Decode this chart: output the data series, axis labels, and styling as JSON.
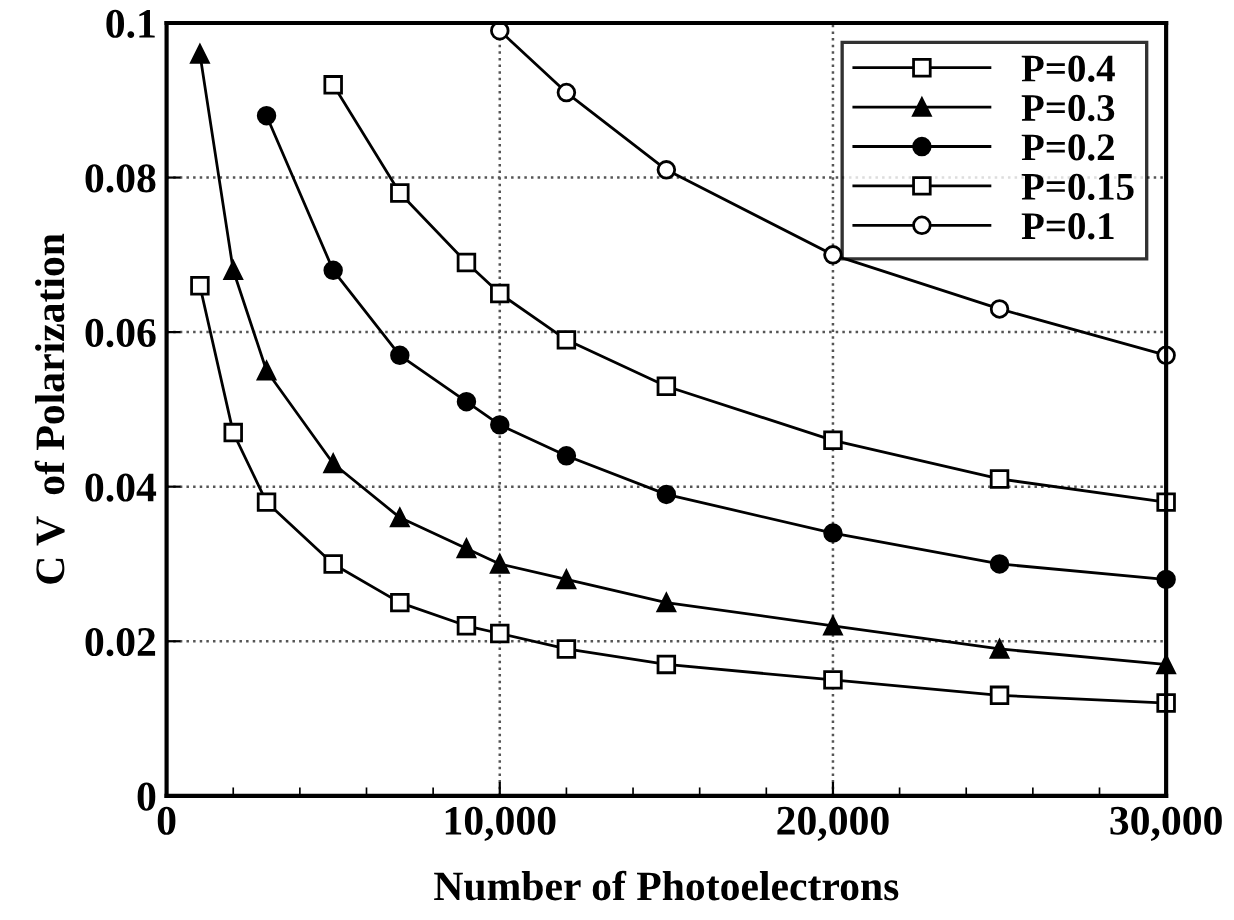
{
  "chart_data": {
    "type": "line",
    "xlabel": "Number of Photoelectrons",
    "ylabel": "C V  of Polarization",
    "xlim": [
      0,
      30000
    ],
    "xticks": [
      {
        "value": 0,
        "label": "0"
      },
      {
        "value": 10000,
        "label": "10,000"
      },
      {
        "value": 20000,
        "label": "20,000"
      },
      {
        "value": 30000,
        "label": "30,000"
      }
    ],
    "ylim": [
      0,
      0.1
    ],
    "yticks": [
      0,
      0.02,
      0.04,
      0.06,
      0.08,
      0.1
    ],
    "grid": true,
    "legend": "top right",
    "line_style": "solid",
    "series": [
      {
        "name": "P=0.4",
        "color": "#000000",
        "marker": "square",
        "x": [
          1000,
          2000,
          3000,
          5000,
          7000,
          9000,
          10000,
          12000,
          15000,
          20000,
          25000,
          30000
        ],
        "values": [
          0.066,
          0.047,
          0.038,
          0.03,
          0.025,
          0.022,
          0.021,
          0.019,
          0.017,
          0.015,
          0.013,
          0.012
        ]
      },
      {
        "name": "P=0.3",
        "color": "#000000",
        "marker": "triangle",
        "x": [
          1000,
          2000,
          3000,
          5000,
          7000,
          9000,
          10000,
          12000,
          15000,
          20000,
          25000,
          30000
        ],
        "values": [
          0.096,
          0.068,
          0.055,
          0.043,
          0.036,
          0.032,
          0.03,
          0.028,
          0.025,
          0.022,
          0.019,
          0.017
        ]
      },
      {
        "name": "P=0.2",
        "color": "#000000",
        "marker": "circle",
        "x": [
          3000,
          5000,
          7000,
          9000,
          10000,
          12000,
          15000,
          20000,
          25000,
          30000
        ],
        "values": [
          0.088,
          0.068,
          0.057,
          0.051,
          0.048,
          0.044,
          0.039,
          0.034,
          0.03,
          0.028
        ]
      },
      {
        "name": "P=0.15",
        "color": "#000000",
        "marker": "square",
        "x": [
          5000,
          7000,
          9000,
          10000,
          12000,
          15000,
          20000,
          25000,
          30000
        ],
        "values": [
          0.092,
          0.078,
          0.069,
          0.065,
          0.059,
          0.053,
          0.046,
          0.041,
          0.038
        ]
      },
      {
        "name": "P=0.1",
        "color": "#000000",
        "marker": "circle",
        "x": [
          10000,
          12000,
          15000,
          20000,
          25000,
          30000
        ],
        "values": [
          0.099,
          0.091,
          0.081,
          0.07,
          0.063,
          0.057
        ]
      }
    ]
  }
}
